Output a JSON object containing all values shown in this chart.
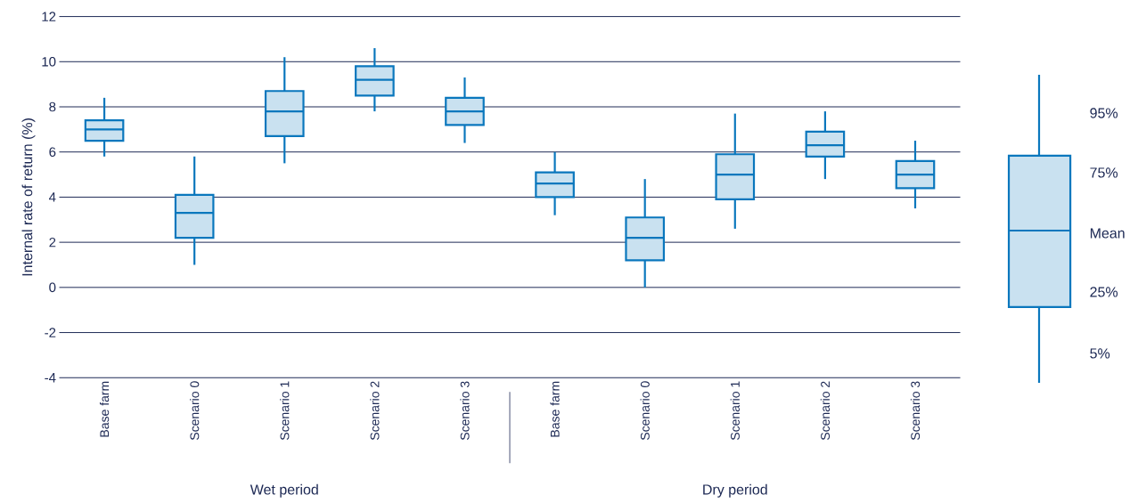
{
  "chart_data": {
    "type": "box",
    "ylabel": "Internal rate of return (%)",
    "categories": [
      "Base farm",
      "Scenario 0",
      "Scenario 1",
      "Scenario 2",
      "Scenario 3",
      "Base farm",
      "Scenario 0",
      "Scenario 1",
      "Scenario 2",
      "Scenario 3"
    ],
    "color": "#0a77bd",
    "boxes": [
      {
        "low": 5.8,
        "q1": 6.5,
        "median": 7.0,
        "q3": 7.4,
        "high": 8.4
      },
      {
        "low": 1.0,
        "q1": 2.2,
        "median": 3.3,
        "q3": 4.1,
        "high": 5.8
      },
      {
        "low": 5.5,
        "q1": 6.7,
        "median": 7.8,
        "q3": 8.7,
        "high": 10.2
      },
      {
        "low": 7.8,
        "q1": 8.5,
        "median": 9.2,
        "q3": 9.8,
        "high": 10.6
      },
      {
        "low": 6.4,
        "q1": 7.2,
        "median": 7.8,
        "q3": 8.4,
        "high": 9.3
      },
      {
        "low": 3.2,
        "q1": 4.0,
        "median": 4.6,
        "q3": 5.1,
        "high": 6.0
      },
      {
        "low": 0.0,
        "q1": 1.2,
        "median": 2.2,
        "q3": 3.1,
        "high": 4.8
      },
      {
        "low": 2.6,
        "q1": 3.9,
        "median": 5.0,
        "q3": 5.9,
        "high": 7.7
      },
      {
        "low": 4.8,
        "q1": 5.8,
        "median": 6.3,
        "q3": 6.9,
        "high": 7.8
      },
      {
        "low": 3.5,
        "q1": 4.4,
        "median": 5.0,
        "q3": 5.6,
        "high": 6.5
      }
    ],
    "ylim": [
      -4,
      12
    ],
    "yticks": [
      -4,
      -2,
      0,
      2,
      4,
      6,
      8,
      10,
      12
    ],
    "grid": "y",
    "annotations": [
      "Wet period",
      "Dry period",
      "95%",
      "75%",
      "Mean",
      "25%",
      "5%"
    ]
  }
}
